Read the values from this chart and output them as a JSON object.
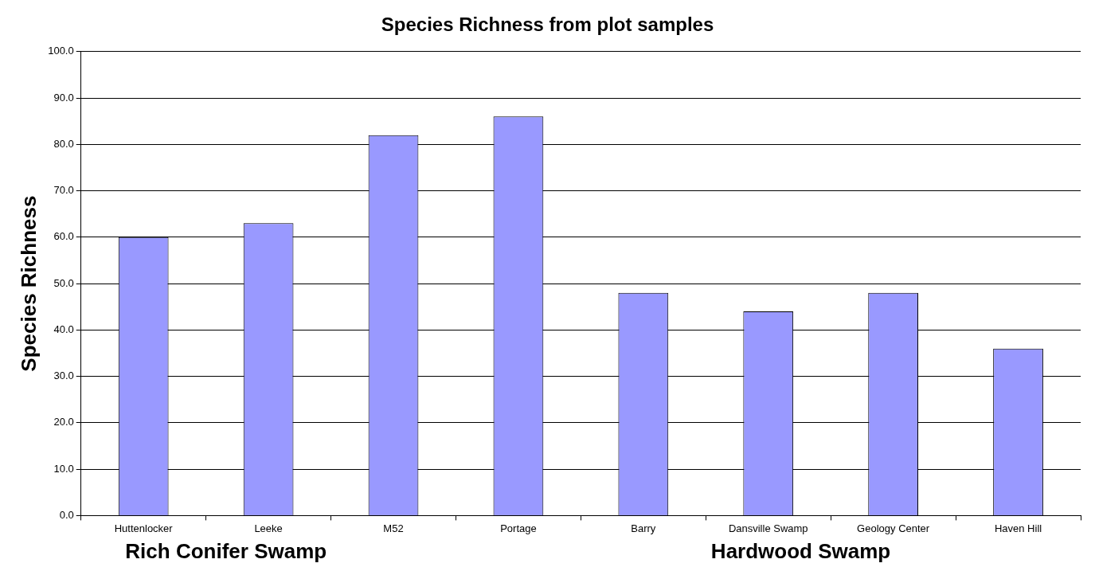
{
  "chart_data": {
    "type": "bar",
    "title": "Species Richness from plot samples",
    "ylabel": "Species Richness",
    "categories": [
      "Huttenlocker",
      "Leeke",
      "M52",
      "Portage",
      "Barry",
      "Dansville Swamp",
      "Geology Center",
      "Haven Hill"
    ],
    "values": [
      60,
      63,
      82,
      86,
      48,
      44,
      48,
      36
    ],
    "color": "#9999ff",
    "ylim": [
      0,
      100
    ],
    "yticks": [
      {
        "value": 0,
        "label": "0.0"
      },
      {
        "value": 10,
        "label": "10.0"
      },
      {
        "value": 20,
        "label": "20.0"
      },
      {
        "value": 30,
        "label": "30.0"
      },
      {
        "value": 40,
        "label": "40.0"
      },
      {
        "value": 50,
        "label": "50.0"
      },
      {
        "value": 60,
        "label": "60.0"
      },
      {
        "value": 70,
        "label": "70.0"
      },
      {
        "value": 80,
        "label": "80.0"
      },
      {
        "value": 90,
        "label": "90.0"
      },
      {
        "value": 100,
        "label": "100.0"
      }
    ],
    "grid": "y",
    "legend": false,
    "annotations": [
      "Rich Conifer Swamp",
      "Hardwood Swamp"
    ]
  }
}
